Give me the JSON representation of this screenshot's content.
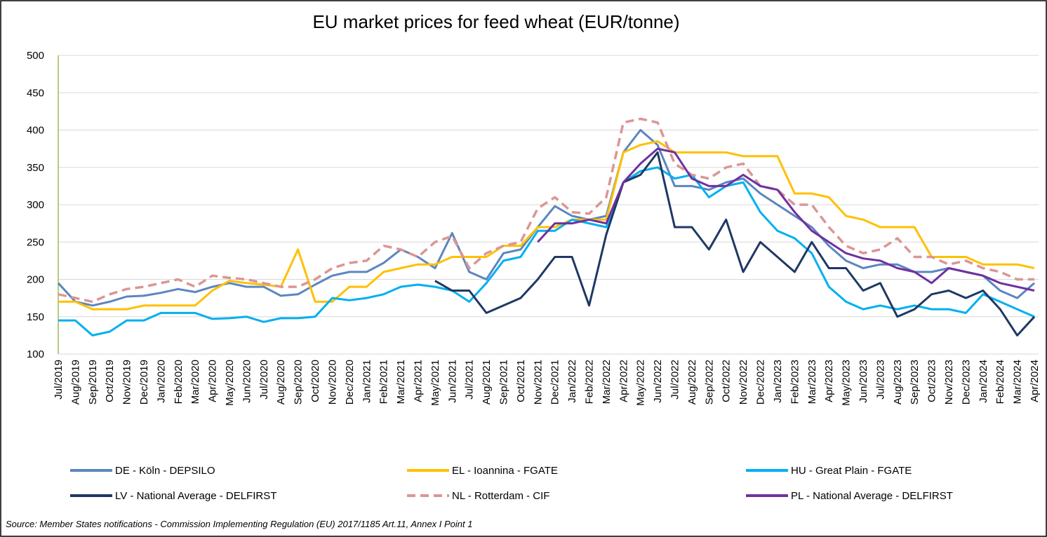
{
  "chart_data": {
    "type": "line",
    "title": "EU market prices for feed wheat (EUR/tonne)",
    "source": "Source: Member States notifications - Commission Implementing Regulation (EU) 2017/1185 Art.11, Annex I Point 1",
    "categories": [
      "Jul/2019",
      "Aug/2019",
      "Sep/2019",
      "Oct/2019",
      "Nov/2019",
      "Dec/2019",
      "Jan/2020",
      "Feb/2020",
      "Mar/2020",
      "Apr/2020",
      "May/2020",
      "Jun/2020",
      "Jul/2020",
      "Aug/2020",
      "Sep/2020",
      "Oct/2020",
      "Nov/2020",
      "Dec/2020",
      "Jan/2021",
      "Feb/2021",
      "Mar/2021",
      "Apr/2021",
      "May/2021",
      "Jun/2021",
      "Jul/2021",
      "Aug/2021",
      "Sep/2021",
      "Oct/2021",
      "Nov/2021",
      "Dec/2021",
      "Jan/2022",
      "Feb/2022",
      "Mar/2022",
      "Apr/2022",
      "May/2022",
      "Jun/2022",
      "Jul/2022",
      "Aug/2022",
      "Sep/2022",
      "Oct/2022",
      "Nov/2022",
      "Dec/2022",
      "Jan/2023",
      "Feb/2023",
      "Mar/2023",
      "Apr/2023",
      "May/2023",
      "Jun/2023",
      "Jul/2023",
      "Aug/2023",
      "Sep/2023",
      "Oct/2023",
      "Nov/2023",
      "Dec/2023",
      "Jan/2024",
      "Feb/2024",
      "Mar/2024",
      "Apr/2024"
    ],
    "series": [
      {
        "name": "DE - Köln - DEPSILO",
        "color": "#5b86c0",
        "dashed": false,
        "values": [
          195,
          170,
          165,
          170,
          177,
          178,
          182,
          187,
          183,
          190,
          195,
          190,
          190,
          178,
          180,
          193,
          205,
          210,
          210,
          222,
          240,
          230,
          215,
          262,
          210,
          200,
          235,
          240,
          270,
          298,
          285,
          280,
          285,
          370,
          400,
          380,
          325,
          325,
          320,
          330,
          335,
          315,
          300,
          285,
          270,
          245,
          225,
          215,
          220,
          220,
          210,
          210,
          215,
          210,
          205,
          185,
          175,
          195
        ]
      },
      {
        "name": "EL - Ioannina - FGATE",
        "color": "#ffc000",
        "dashed": false,
        "values": [
          170,
          170,
          160,
          160,
          160,
          165,
          165,
          165,
          165,
          185,
          198,
          195,
          193,
          190,
          240,
          170,
          170,
          190,
          190,
          210,
          215,
          220,
          220,
          230,
          230,
          230,
          245,
          245,
          270,
          270,
          280,
          280,
          280,
          370,
          380,
          385,
          370,
          370,
          370,
          370,
          365,
          365,
          365,
          315,
          315,
          310,
          285,
          280,
          270,
          270,
          270,
          230,
          230,
          230,
          220,
          220,
          220,
          215
        ]
      },
      {
        "name": "HU - Great Plain - FGATE",
        "color": "#00b0f0",
        "dashed": false,
        "values": [
          145,
          145,
          125,
          130,
          145,
          145,
          155,
          155,
          155,
          147,
          148,
          150,
          143,
          148,
          148,
          150,
          175,
          172,
          175,
          180,
          190,
          193,
          190,
          185,
          170,
          195,
          225,
          230,
          265,
          265,
          280,
          275,
          270,
          330,
          345,
          350,
          335,
          340,
          310,
          325,
          330,
          290,
          265,
          255,
          235,
          190,
          170,
          160,
          165,
          160,
          165,
          160,
          160,
          155,
          180,
          170,
          160,
          150
        ]
      },
      {
        "name": "LV - National Average - DELFIRST",
        "color": "#1f3864",
        "dashed": false,
        "values": [
          null,
          null,
          null,
          null,
          null,
          null,
          null,
          null,
          null,
          null,
          null,
          null,
          null,
          null,
          null,
          null,
          null,
          null,
          null,
          null,
          null,
          null,
          198,
          185,
          185,
          155,
          165,
          175,
          200,
          230,
          230,
          165,
          260,
          330,
          340,
          370,
          270,
          270,
          240,
          280,
          210,
          250,
          230,
          210,
          250,
          215,
          215,
          185,
          195,
          150,
          160,
          180,
          185,
          175,
          185,
          160,
          125,
          150
        ]
      },
      {
        "name": "NL - Rotterdam - CIF",
        "color": "#da9694",
        "dashed": true,
        "values": [
          180,
          175,
          170,
          180,
          187,
          190,
          195,
          200,
          190,
          205,
          202,
          200,
          195,
          190,
          190,
          200,
          215,
          222,
          225,
          245,
          240,
          230,
          250,
          258,
          215,
          235,
          245,
          250,
          295,
          310,
          290,
          288,
          310,
          410,
          415,
          410,
          355,
          340,
          335,
          350,
          355,
          325,
          320,
          300,
          300,
          270,
          245,
          235,
          240,
          255,
          230,
          230,
          220,
          225,
          215,
          210,
          200,
          200
        ]
      },
      {
        "name": "PL - National Average - DELFIRST",
        "color": "#7030a0",
        "dashed": false,
        "values": [
          null,
          null,
          null,
          null,
          null,
          null,
          null,
          null,
          null,
          null,
          null,
          null,
          null,
          null,
          null,
          null,
          null,
          null,
          null,
          null,
          null,
          null,
          null,
          null,
          null,
          null,
          null,
          null,
          250,
          275,
          275,
          280,
          275,
          330,
          355,
          375,
          370,
          335,
          325,
          325,
          340,
          325,
          320,
          290,
          265,
          250,
          235,
          228,
          225,
          215,
          210,
          195,
          215,
          210,
          205,
          195,
          190,
          185
        ]
      }
    ],
    "ylim": [
      100,
      500
    ],
    "yticks": [
      100,
      150,
      200,
      250,
      300,
      350,
      400,
      450,
      500
    ],
    "grid": true
  }
}
